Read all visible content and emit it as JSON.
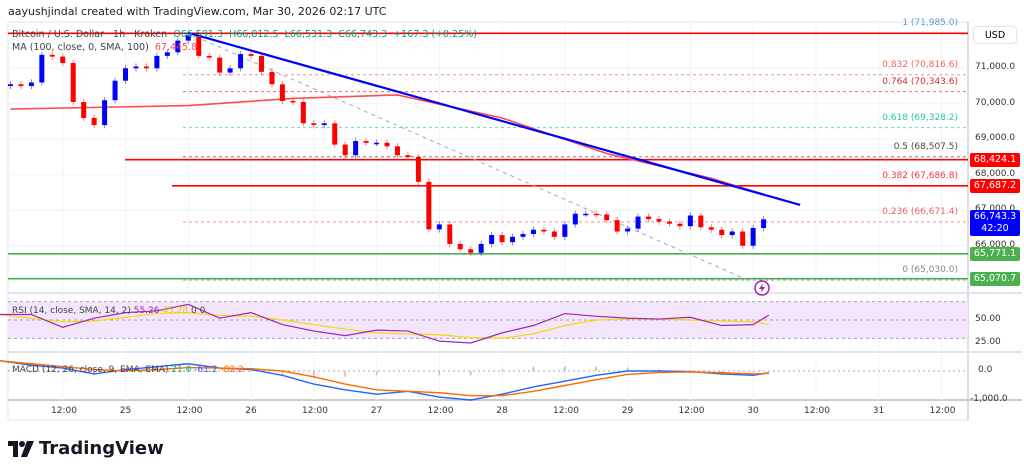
{
  "credit": "aayushjindal created with TradingView.com, Mar 30, 2026 02:17 UTC",
  "header": {
    "symbol": "Bitcoin / U.S. Dollar · 1h · Kraken",
    "open": "O66,591.3",
    "high": "H66,812.5",
    "low": "L66,531.3",
    "close": "C66,743.3",
    "change": "+167.3 (+0.25%)"
  },
  "ma_legend": {
    "label": "MA (100, close, 0, SMA, 100)",
    "value": "67,445.8"
  },
  "rsi_legend": {
    "label": "RSI (14, close, SMA, 14, 2)",
    "rsi": "55.26",
    "sma": "45.28",
    "v3": "0",
    "v4": "0"
  },
  "macd_legend": {
    "label": "MACD (12, 26, close, 9, EMA, EMA)",
    "hist": "21.0",
    "macd": "-61.2",
    "signal": "-82.2"
  },
  "currency": "USD",
  "logo": "TradingView",
  "colors": {
    "up": "#0000ff",
    "down": "#ff0000",
    "ma": "#ff4d4d",
    "trendline": "#0000ff",
    "support": "#4caf50",
    "resistance": "#ff0000",
    "rsi": "#9c27b0",
    "rsi_sma": "#ffeb3b",
    "macd": "#2962ff",
    "signal": "#ff6d00"
  },
  "price_axis": [
    "71,000.0",
    "70,000.0",
    "69,000.0",
    "68,000.0",
    "67,000.0",
    "66,000.0"
  ],
  "time_axis": [
    "12:00",
    "25",
    "12:00",
    "26",
    "12:00",
    "27",
    "12:00",
    "28",
    "12:00",
    "29",
    "12:00",
    "30",
    "12:00",
    "31",
    "12:00"
  ],
  "rsi_axis": [
    "50.00",
    "25.00"
  ],
  "macd_axis": [
    "0.0",
    "-1,000.0"
  ],
  "price_labels": {
    "h1": "68,424.1",
    "h2": "67,687.2",
    "last": "66,743.3",
    "countdown": "42:20",
    "s1": "65,771.1",
    "s2": "65,070.7"
  },
  "fib_labels": [
    "1 (71,985.0)",
    "0.832 (70,816.6)",
    "0.764 (70,343.6)",
    "0.618 (69,328.2)",
    "0.5 (68,507.5)",
    "0.382 (67,686.8)",
    "0.236 (66,671.4)",
    "0 (65,030.0)"
  ],
  "chart_data": {
    "type": "candlestick",
    "timeframe": "1h",
    "ylim": [
      64800,
      72300
    ],
    "xlim": [
      "Mar 24 00:00",
      "Mar 31 18:00"
    ],
    "close_series": {
      "x": [
        "Mar 24 02:00",
        "Mar 24 04:00",
        "Mar 24 06:00",
        "Mar 24 08:00",
        "Mar 24 10:00",
        "Mar 24 12:00",
        "Mar 24 14:00",
        "Mar 24 16:00",
        "Mar 24 18:00",
        "Mar 24 20:00",
        "Mar 24 22:00",
        "Mar 25 00:00",
        "Mar 25 02:00",
        "Mar 25 04:00",
        "Mar 25 06:00",
        "Mar 25 08:00",
        "Mar 25 10:00",
        "Mar 25 12:00",
        "Mar 25 14:00",
        "Mar 25 16:00",
        "Mar 25 18:00",
        "Mar 25 20:00",
        "Mar 25 22:00",
        "Mar 26 00:00",
        "Mar 26 02:00",
        "Mar 26 04:00",
        "Mar 26 06:00",
        "Mar 26 08:00",
        "Mar 26 10:00",
        "Mar 26 12:00",
        "Mar 26 14:00",
        "Mar 26 16:00",
        "Mar 26 18:00",
        "Mar 26 20:00",
        "Mar 26 22:00",
        "Mar 27 00:00",
        "Mar 27 02:00",
        "Mar 27 04:00",
        "Mar 27 06:00",
        "Mar 27 08:00",
        "Mar 27 10:00",
        "Mar 27 12:00",
        "Mar 27 14:00",
        "Mar 27 16:00",
        "Mar 27 18:00",
        "Mar 27 20:00",
        "Mar 27 22:00",
        "Mar 28 00:00",
        "Mar 28 02:00",
        "Mar 28 04:00",
        "Mar 28 06:00",
        "Mar 28 08:00",
        "Mar 28 10:00",
        "Mar 28 12:00",
        "Mar 28 14:00",
        "Mar 28 16:00",
        "Mar 28 18:00",
        "Mar 28 20:00",
        "Mar 28 22:00",
        "Mar 29 00:00",
        "Mar 29 02:00",
        "Mar 29 04:00",
        "Mar 29 06:00",
        "Mar 29 08:00",
        "Mar 29 10:00",
        "Mar 29 12:00",
        "Mar 29 14:00",
        "Mar 29 16:00",
        "Mar 29 18:00",
        "Mar 29 20:00",
        "Mar 29 22:00",
        "Mar 30 00:00",
        "Mar 30 02:00"
      ],
      "close": [
        70550,
        70500,
        70600,
        71380,
        71330,
        71150,
        70050,
        69600,
        69400,
        70100,
        70650,
        71000,
        71050,
        71000,
        71350,
        71450,
        71780,
        71930,
        71350,
        71300,
        70880,
        71000,
        71400,
        71350,
        70900,
        70550,
        70080,
        70050,
        69450,
        69400,
        69450,
        68850,
        68550,
        68950,
        68900,
        68900,
        68800,
        68550,
        68500,
        67800,
        66460,
        66600,
        66050,
        65900,
        65800,
        66050,
        66300,
        66100,
        66250,
        66330,
        66450,
        66400,
        66250,
        66600,
        66900,
        66900,
        66880,
        66720,
        66400,
        66480,
        66820,
        66750,
        66680,
        66620,
        66550,
        66850,
        66520,
        66450,
        66300,
        66400,
        66000,
        66500,
        66743
      ]
    },
    "ma100": {
      "x": [
        "Mar 24 02:00",
        "Mar 25 12:00",
        "Mar 26 08:00",
        "Mar 27 04:00",
        "Mar 28 00:00",
        "Mar 28 20:00",
        "Mar 29 16:00",
        "Mar 30 02:00"
      ],
      "y": [
        69850,
        69950,
        70150,
        70250,
        69600,
        68600,
        67900,
        67445.8
      ]
    },
    "trendline": {
      "x": [
        "Mar 25 12:00",
        "Mar 30 09:00"
      ],
      "y": [
        72000,
        67150
      ]
    },
    "fib_diagonal": {
      "x": [
        "Mar 25 12:00",
        "Mar 29 23:00"
      ],
      "y": [
        71985,
        65030
      ]
    },
    "fib_levels": [
      {
        "ratio": 1,
        "price": 71985.0
      },
      {
        "ratio": 0.832,
        "price": 70816.6
      },
      {
        "ratio": 0.764,
        "price": 70343.6
      },
      {
        "ratio": 0.618,
        "price": 69328.2
      },
      {
        "ratio": 0.5,
        "price": 68507.5
      },
      {
        "ratio": 0.382,
        "price": 67686.8
      },
      {
        "ratio": 0.236,
        "price": 66671.4
      },
      {
        "ratio": 0,
        "price": 65030.0
      }
    ],
    "horizontal_lines": [
      {
        "price": 71985.0,
        "kind": "resistance"
      },
      {
        "price": 68424.1,
        "kind": "resistance"
      },
      {
        "price": 67687.2,
        "kind": "resistance"
      },
      {
        "price": 65771.1,
        "kind": "support"
      },
      {
        "price": 65070.7,
        "kind": "support"
      }
    ],
    "rsi": {
      "ylim": [
        0,
        100
      ],
      "bands": [
        70,
        30
      ],
      "x": [
        "Mar 24 00:00",
        "Mar 24 06:00",
        "Mar 24 12:00",
        "Mar 24 18:00",
        "Mar 25 00:00",
        "Mar 25 06:00",
        "Mar 25 12:00",
        "Mar 25 18:00",
        "Mar 26 00:00",
        "Mar 26 06:00",
        "Mar 26 12:00",
        "Mar 26 18:00",
        "Mar 27 00:00",
        "Mar 27 06:00",
        "Mar 27 12:00",
        "Mar 27 18:00",
        "Mar 28 00:00",
        "Mar 28 06:00",
        "Mar 28 12:00",
        "Mar 28 18:00",
        "Mar 29 00:00",
        "Mar 29 06:00",
        "Mar 29 12:00",
        "Mar 29 18:00",
        "Mar 30 00:00",
        "Mar 30 03:00"
      ],
      "rsi": [
        56,
        56,
        42,
        52,
        58,
        60,
        67,
        52,
        58,
        45,
        38,
        33,
        39,
        38,
        27,
        25,
        36,
        44,
        57,
        54,
        52,
        51,
        53,
        44,
        45,
        55.26
      ],
      "sma": [
        56,
        52,
        48,
        49,
        53,
        57,
        58,
        55,
        54,
        50,
        45,
        40,
        36,
        35,
        34,
        31,
        30,
        35,
        44,
        50,
        51,
        51,
        50,
        49,
        48,
        45.28
      ]
    },
    "macd": {
      "x": [
        "Mar 24 00:00",
        "Mar 24 06:00",
        "Mar 24 12:00",
        "Mar 24 18:00",
        "Mar 25 00:00",
        "Mar 25 06:00",
        "Mar 25 12:00",
        "Mar 25 18:00",
        "Mar 26 00:00",
        "Mar 26 06:00",
        "Mar 26 12:00",
        "Mar 26 18:00",
        "Mar 27 00:00",
        "Mar 27 06:00",
        "Mar 27 12:00",
        "Mar 27 18:00",
        "Mar 28 00:00",
        "Mar 28 06:00",
        "Mar 28 12:00",
        "Mar 28 18:00",
        "Mar 29 00:00",
        "Mar 29 06:00",
        "Mar 29 12:00",
        "Mar 29 18:00",
        "Mar 30 00:00",
        "Mar 30 03:00"
      ],
      "macd": [
        350,
        200,
        100,
        -100,
        50,
        150,
        250,
        100,
        50,
        -150,
        -450,
        -650,
        -800,
        -700,
        -900,
        -1000,
        -800,
        -550,
        -350,
        -150,
        0,
        0,
        -20,
        -100,
        -150,
        -61.2
      ],
      "signal": [
        350,
        250,
        150,
        50,
        0,
        50,
        120,
        100,
        80,
        0,
        -200,
        -450,
        -650,
        -700,
        -750,
        -850,
        -850,
        -700,
        -500,
        -300,
        -120,
        -50,
        -30,
        -60,
        -100,
        -82.2
      ]
    }
  }
}
